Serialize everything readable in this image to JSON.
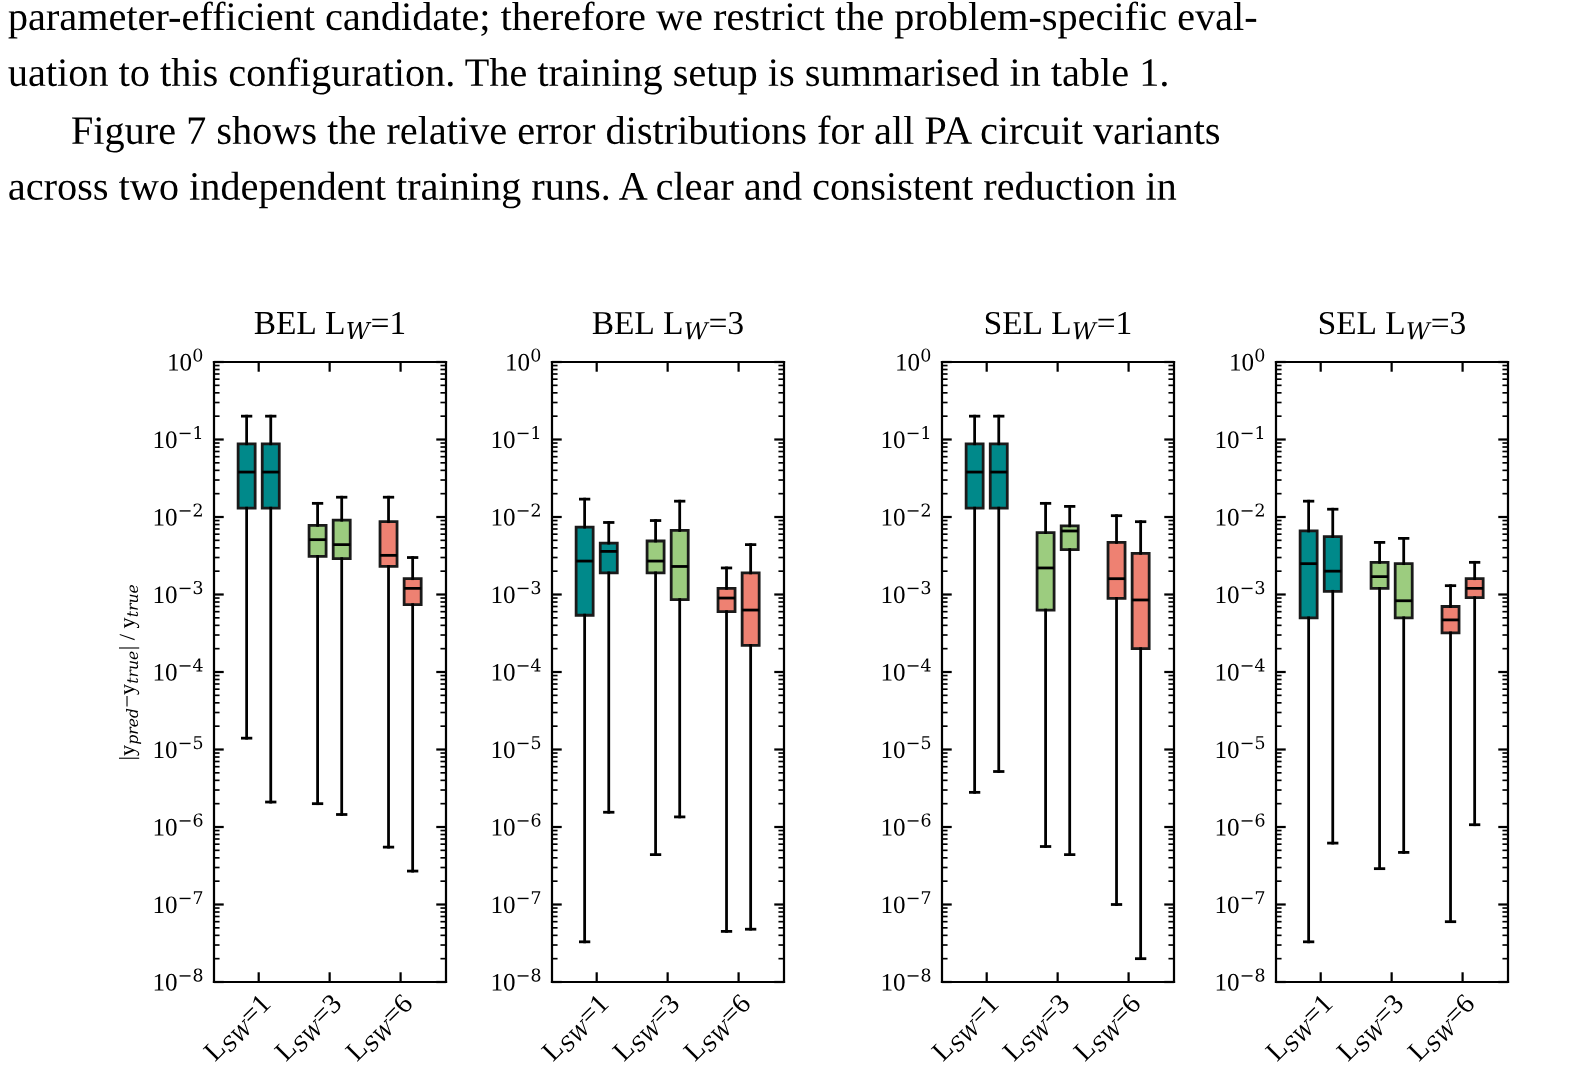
{
  "chart_data": [
    {
      "type": "box",
      "title": "BEL L$_{W}$=1",
      "ylabel": "|y$_{pred}$−y$_{true}$| / y$_{true}$",
      "annotations": [
        "parameter-efficient candidate; therefore we restrict the problem-specific eval-",
        "uation to this configuration. The training setup is summarised in table 1.",
        "Figure 7 shows the relative error distributions for all PA circuit variants",
        "across two independent training runs. A clear and consistent reduction in"
      ],
      "categories": [
        "L$_{SW}$=1",
        "L$_{SW}$=3",
        "L$_{SW}$=6"
      ],
      "log": "y",
      "ylim": [
        1e-08,
        1
      ],
      "yticks": [
        {
          "value": 1e-08,
          "label": "10$^{−8}$"
        },
        {
          "value": 1e-07,
          "label": "10$^{−7}$"
        },
        {
          "value": 1e-06,
          "label": "10$^{−6}$"
        },
        {
          "value": 1e-05,
          "label": "10$^{−5}$"
        },
        {
          "value": 0.0001,
          "label": "10$^{−4}$"
        },
        {
          "value": 0.001,
          "label": "10$^{−3}$"
        },
        {
          "value": 0.01,
          "label": "10$^{−2}$"
        },
        {
          "value": 0.1,
          "label": "10$^{−1}$"
        },
        {
          "value": 1,
          "label": "10$^{0}$"
        }
      ],
      "series": [
        {
          "colors": [
            "#00898a",
            "#9ccc7f",
            "#ee8172"
          ],
          "boxes": [
            {
              "low": 1.4e-05,
              "q1": 0.013,
              "median": 0.038,
              "q3": 0.088,
              "high": 0.2
            },
            {
              "low": 2e-06,
              "q1": 0.0031,
              "median": 0.0051,
              "q3": 0.0078,
              "high": 0.015
            },
            {
              "low": 5.5e-07,
              "q1": 0.0023,
              "median": 0.0032,
              "q3": 0.0087,
              "high": 0.018
            }
          ]
        },
        {
          "colors": [
            "#00898a",
            "#9ccc7f",
            "#ee8172"
          ],
          "boxes": [
            {
              "low": 2.1e-06,
              "q1": 0.013,
              "median": 0.038,
              "q3": 0.088,
              "high": 0.2
            },
            {
              "low": 1.45e-06,
              "q1": 0.0029,
              "median": 0.0044,
              "q3": 0.0091,
              "high": 0.018
            },
            {
              "low": 2.7e-07,
              "q1": 0.00074,
              "median": 0.0012,
              "q3": 0.0016,
              "high": 0.003
            }
          ]
        }
      ]
    },
    {
      "type": "box",
      "title": "BEL L$_{W}$=3",
      "categories": [
        "L$_{SW}$=1",
        "L$_{SW}$=3",
        "L$_{SW}$=6"
      ],
      "log": "y",
      "ylim": [
        1e-08,
        1
      ],
      "yticks": [
        {
          "value": 1e-08,
          "label": "10$^{−8}$"
        },
        {
          "value": 1e-07,
          "label": "10$^{−7}$"
        },
        {
          "value": 1e-06,
          "label": "10$^{−6}$"
        },
        {
          "value": 1e-05,
          "label": "10$^{−5}$"
        },
        {
          "value": 0.0001,
          "label": "10$^{−4}$"
        },
        {
          "value": 0.001,
          "label": "10$^{−3}$"
        },
        {
          "value": 0.01,
          "label": "10$^{−2}$"
        },
        {
          "value": 0.1,
          "label": "10$^{−1}$"
        },
        {
          "value": 1,
          "label": "10$^{0}$"
        }
      ],
      "series": [
        {
          "colors": [
            "#00898a",
            "#9ccc7f",
            "#ee8172"
          ],
          "boxes": [
            {
              "low": 3.3e-08,
              "q1": 0.00054,
              "median": 0.0027,
              "q3": 0.0074,
              "high": 0.017
            },
            {
              "low": 4.4e-07,
              "q1": 0.0019,
              "median": 0.0027,
              "q3": 0.0049,
              "high": 0.009
            },
            {
              "low": 4.5e-08,
              "q1": 0.0006,
              "median": 0.0009,
              "q3": 0.0012,
              "high": 0.0022
            }
          ]
        },
        {
          "colors": [
            "#00898a",
            "#9ccc7f",
            "#ee8172"
          ],
          "boxes": [
            {
              "low": 1.55e-06,
              "q1": 0.0019,
              "median": 0.0036,
              "q3": 0.0046,
              "high": 0.0085
            },
            {
              "low": 1.35e-06,
              "q1": 0.00086,
              "median": 0.0023,
              "q3": 0.0067,
              "high": 0.016
            },
            {
              "low": 4.8e-08,
              "q1": 0.00022,
              "median": 0.00063,
              "q3": 0.0019,
              "high": 0.0044
            }
          ]
        }
      ]
    },
    {
      "type": "box",
      "title": "SEL L$_{W}$=1",
      "categories": [
        "L$_{SW}$=1",
        "L$_{SW}$=3",
        "L$_{SW}$=6"
      ],
      "log": "y",
      "ylim": [
        1e-08,
        1
      ],
      "yticks": [
        {
          "value": 1e-08,
          "label": "10$^{−8}$"
        },
        {
          "value": 1e-07,
          "label": "10$^{−7}$"
        },
        {
          "value": 1e-06,
          "label": "10$^{−6}$"
        },
        {
          "value": 1e-05,
          "label": "10$^{−5}$"
        },
        {
          "value": 0.0001,
          "label": "10$^{−4}$"
        },
        {
          "value": 0.001,
          "label": "10$^{−3}$"
        },
        {
          "value": 0.01,
          "label": "10$^{−2}$"
        },
        {
          "value": 0.1,
          "label": "10$^{−1}$"
        },
        {
          "value": 1,
          "label": "10$^{0}$"
        }
      ],
      "series": [
        {
          "colors": [
            "#00898a",
            "#9ccc7f",
            "#ee8172"
          ],
          "boxes": [
            {
              "low": 2.8e-06,
              "q1": 0.013,
              "median": 0.038,
              "q3": 0.088,
              "high": 0.2
            },
            {
              "low": 5.6e-07,
              "q1": 0.00063,
              "median": 0.0022,
              "q3": 0.0063,
              "high": 0.015
            },
            {
              "low": 1e-07,
              "q1": 0.00089,
              "median": 0.0016,
              "q3": 0.0047,
              "high": 0.0104
            }
          ]
        },
        {
          "colors": [
            "#00898a",
            "#9ccc7f",
            "#ee8172"
          ],
          "boxes": [
            {
              "low": 5.2e-06,
              "q1": 0.013,
              "median": 0.038,
              "q3": 0.088,
              "high": 0.2
            },
            {
              "low": 4.4e-07,
              "q1": 0.0038,
              "median": 0.0066,
              "q3": 0.0077,
              "high": 0.0137
            },
            {
              "low": 2e-08,
              "q1": 0.0002,
              "median": 0.00085,
              "q3": 0.0034,
              "high": 0.0087
            }
          ]
        }
      ]
    },
    {
      "type": "box",
      "title": "SEL L$_{W}$=3",
      "categories": [
        "L$_{SW}$=1",
        "L$_{SW}$=3",
        "L$_{SW}$=6"
      ],
      "log": "y",
      "ylim": [
        1e-08,
        1
      ],
      "yticks": [
        {
          "value": 1e-08,
          "label": "10$^{−8}$"
        },
        {
          "value": 1e-07,
          "label": "10$^{−7}$"
        },
        {
          "value": 1e-06,
          "label": "10$^{−6}$"
        },
        {
          "value": 1e-05,
          "label": "10$^{−5}$"
        },
        {
          "value": 0.0001,
          "label": "10$^{−4}$"
        },
        {
          "value": 0.001,
          "label": "10$^{−3}$"
        },
        {
          "value": 0.01,
          "label": "10$^{−2}$"
        },
        {
          "value": 0.1,
          "label": "10$^{−1}$"
        },
        {
          "value": 1,
          "label": "10$^{0}$"
        }
      ],
      "series": [
        {
          "colors": [
            "#00898a",
            "#9ccc7f",
            "#ee8172"
          ],
          "boxes": [
            {
              "low": 3.3e-08,
              "q1": 0.0005,
              "median": 0.0025,
              "q3": 0.0066,
              "high": 0.016
            },
            {
              "low": 2.9e-07,
              "q1": 0.0012,
              "median": 0.0017,
              "q3": 0.0026,
              "high": 0.0047
            },
            {
              "low": 6e-08,
              "q1": 0.00032,
              "median": 0.00047,
              "q3": 0.0007,
              "high": 0.0013
            }
          ]
        },
        {
          "colors": [
            "#00898a",
            "#9ccc7f",
            "#ee8172"
          ],
          "boxes": [
            {
              "low": 6.2e-07,
              "q1": 0.0011,
              "median": 0.002,
              "q3": 0.0056,
              "high": 0.0126
            },
            {
              "low": 4.7e-07,
              "q1": 0.0005,
              "median": 0.00083,
              "q3": 0.0025,
              "high": 0.0053
            },
            {
              "low": 1.07e-06,
              "q1": 0.00091,
              "median": 0.0012,
              "q3": 0.0016,
              "high": 0.0026
            }
          ]
        }
      ]
    }
  ]
}
